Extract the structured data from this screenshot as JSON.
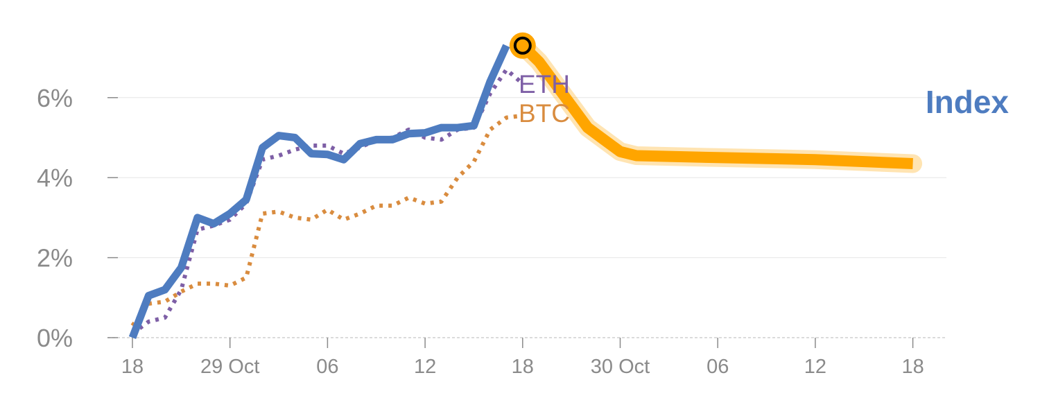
{
  "chart_data": {
    "type": "line",
    "y_unit": "%",
    "ylim": [
      0,
      7.5
    ],
    "grid": true,
    "y_ticks": [
      "0%",
      "2%",
      "4%",
      "6%"
    ],
    "y_tick_values": [
      0,
      2,
      4,
      6
    ],
    "x_ticks": [
      "18",
      "29 Oct",
      "06",
      "12",
      "18",
      "30 Oct",
      "06",
      "12",
      "18"
    ],
    "x_tick_positions": [
      0,
      6,
      12,
      18,
      24,
      30,
      36,
      42,
      48
    ],
    "xlim": [
      -1,
      50
    ],
    "series": [
      {
        "name": "Index",
        "color": "#4e7cc0",
        "style": "solid",
        "x": [
          0,
          1,
          2,
          3,
          4,
          5,
          6,
          7,
          8,
          9,
          10,
          11,
          12,
          13,
          14,
          15,
          16,
          17,
          18,
          19,
          20,
          21,
          22,
          23
        ],
        "y": [
          0.0,
          1.05,
          1.2,
          1.75,
          3.0,
          2.85,
          3.1,
          3.45,
          4.75,
          5.05,
          5.0,
          4.6,
          4.58,
          4.45,
          4.85,
          4.95,
          4.95,
          5.1,
          5.12,
          5.25,
          5.25,
          5.3,
          6.4,
          7.3
        ]
      },
      {
        "name": "ETH",
        "color": "#7e5fa6",
        "style": "dotted",
        "x": [
          0,
          1,
          2,
          3,
          4,
          5,
          6,
          7,
          8,
          9,
          10,
          11,
          12,
          13,
          14,
          15,
          16,
          17,
          18,
          19,
          20,
          21,
          22,
          23,
          24
        ],
        "y": [
          0.1,
          0.4,
          0.5,
          1.2,
          2.7,
          2.8,
          2.95,
          3.35,
          4.45,
          4.55,
          4.7,
          4.8,
          4.8,
          4.6,
          4.75,
          4.95,
          5.0,
          5.2,
          5.0,
          4.95,
          5.2,
          5.25,
          6.1,
          6.7,
          6.35
        ]
      },
      {
        "name": "BTC",
        "color": "#d98c3f",
        "style": "dotted",
        "x": [
          0,
          1,
          2,
          3,
          4,
          5,
          6,
          7,
          8,
          9,
          10,
          11,
          12,
          13,
          14,
          15,
          16,
          17,
          18,
          19,
          20,
          21,
          22,
          23,
          24
        ],
        "y": [
          0.3,
          0.85,
          0.9,
          1.15,
          1.35,
          1.35,
          1.3,
          1.5,
          3.1,
          3.15,
          3.0,
          2.95,
          3.2,
          2.95,
          3.1,
          3.3,
          3.3,
          3.5,
          3.35,
          3.4,
          4.0,
          4.4,
          5.2,
          5.5,
          5.55
        ]
      }
    ],
    "forecast": {
      "color": "#ffa500",
      "x": [
        24,
        25,
        26,
        27,
        28,
        29,
        30,
        31,
        36,
        42,
        48
      ],
      "y": [
        7.3,
        6.9,
        6.35,
        5.8,
        5.25,
        4.95,
        4.65,
        4.55,
        4.5,
        4.45,
        4.35
      ]
    },
    "highlight_point": {
      "x": 24,
      "y": 7.3
    },
    "index_label": "Index",
    "eth_label": "ETH",
    "btc_label": "BTC"
  }
}
